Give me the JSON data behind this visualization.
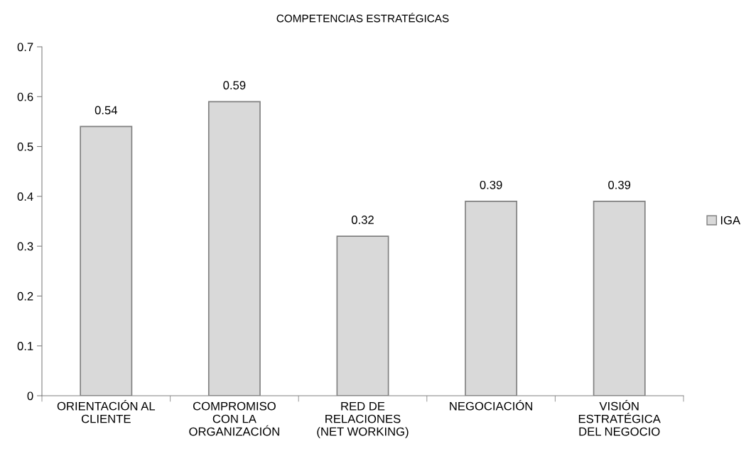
{
  "chart_data": {
    "type": "bar",
    "title": "COMPETENCIAS ESTRATÉGICAS",
    "categories": [
      "ORIENTACIÓN AL\nCLIENTE",
      "COMPROMISO\nCON LA\nORGANIZACIÓN",
      "RED DE\nRELACIONES\n(NET WORKING)",
      "NEGOCIACIÓN",
      "VISIÓN\nESTRATÉGICA\nDEL NEGOCIO"
    ],
    "series": [
      {
        "name": "IGA",
        "color": "#d9d9d9",
        "values": [
          0.54,
          0.59,
          0.32,
          0.39,
          0.39
        ]
      }
    ],
    "ylim": [
      0,
      0.7
    ],
    "yticks": [
      {
        "value": 0,
        "label": "0"
      },
      0.1,
      0.2,
      0.3,
      0.4,
      0.5,
      0.6,
      0.7
    ],
    "grid": false,
    "legend": "right",
    "data_labels": true
  }
}
